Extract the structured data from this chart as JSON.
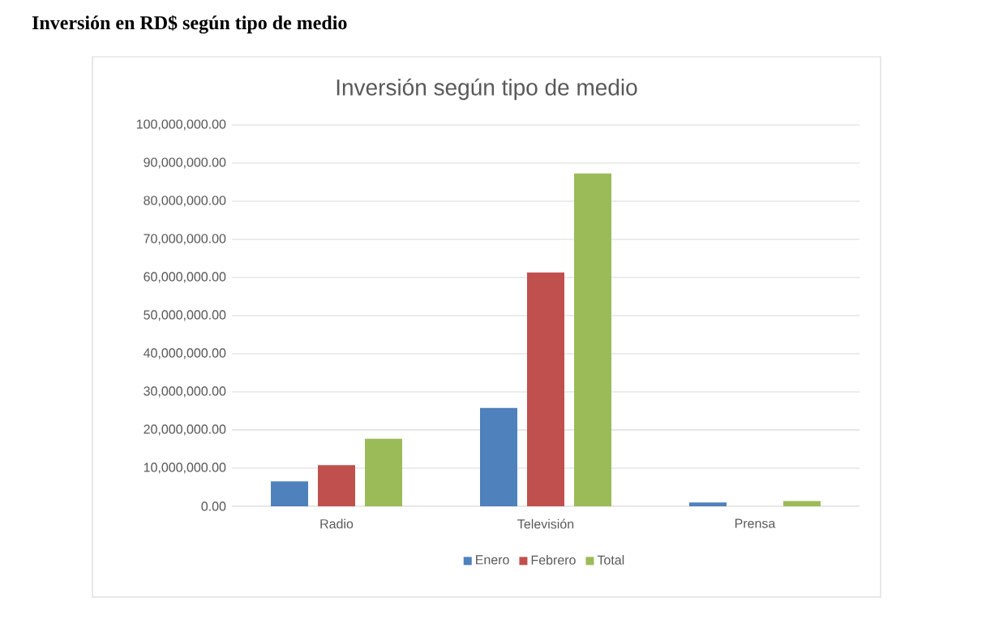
{
  "chart_data": {
    "type": "bar",
    "title": "Inversión en RD$ según tipo de medio",
    "subtitle": "Inversión según tipo de medio",
    "categories": [
      "Radio",
      "Televisión",
      "Prensa"
    ],
    "series": [
      {
        "name": "Enero",
        "color": "#4f81bd",
        "values": [
          6550000,
          25800000,
          1000000
        ]
      },
      {
        "name": "Febrero",
        "color": "#c0504d",
        "values": [
          10800000,
          61300000,
          0
        ]
      },
      {
        "name": "Total",
        "color": "#9bbb59",
        "values": [
          17700000,
          87300000,
          1400000
        ]
      }
    ],
    "ylim": [
      0,
      100000000
    ],
    "yticks": [
      {
        "value": 0,
        "label": "0.00"
      },
      {
        "value": 10000000,
        "label": "10,000,000.00"
      },
      {
        "value": 20000000,
        "label": "20,000,000.00"
      },
      {
        "value": 30000000,
        "label": "30,000,000.00"
      },
      {
        "value": 40000000,
        "label": "40,000,000.00"
      },
      {
        "value": 50000000,
        "label": "50,000,000.00"
      },
      {
        "value": 60000000,
        "label": "60,000,000.00"
      },
      {
        "value": 70000000,
        "label": "70,000,000.00"
      },
      {
        "value": 80000000,
        "label": "80,000,000.00"
      },
      {
        "value": 90000000,
        "label": "90,000,000.00"
      },
      {
        "value": 100000000,
        "label": "100,000,000.00"
      }
    ],
    "grid": "y",
    "legend": "bottom"
  }
}
